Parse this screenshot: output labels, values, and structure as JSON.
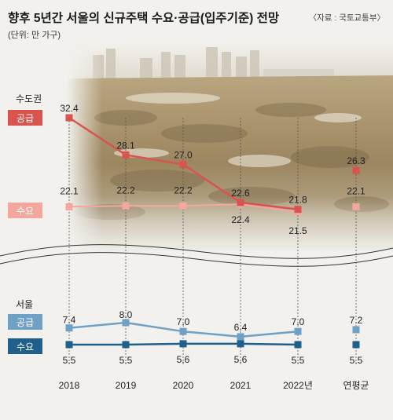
{
  "title": "향후 5년간 서울의 신규주택 수요·공급(입주기준) 전망",
  "unit": "(단위: 만 가구)",
  "source": "〈자료 : 국토교통부〉",
  "colors": {
    "capital_supply": "#d9534f",
    "capital_demand": "#f4a79f",
    "seoul_supply": "#6fa0c6",
    "seoul_demand": "#1f5f8b",
    "text": "#222222",
    "background": "#f2f1ee"
  },
  "chart_data": [
    {
      "type": "line",
      "group": "수도권",
      "categories": [
        "2018",
        "2019",
        "2020",
        "2021",
        "2022년"
      ],
      "series": [
        {
          "name": "공급",
          "values": [
            32.4,
            28.1,
            27.0,
            22.6,
            21.8
          ],
          "labels": [
            "32.4",
            "28.1",
            "27.0",
            "22.6",
            "21.8"
          ],
          "average": 26.3,
          "average_label": "26.3"
        },
        {
          "name": "수요",
          "values": [
            22.1,
            22.2,
            22.2,
            22.4,
            21.5
          ],
          "labels": [
            "22.1",
            "22.2",
            "22.2",
            "22.4",
            "21.5"
          ],
          "average": 22.1,
          "average_label": "22.1"
        }
      ],
      "average_category": "연평균"
    },
    {
      "type": "line",
      "group": "서울",
      "categories": [
        "2018",
        "2019",
        "2020",
        "2021",
        "2022년"
      ],
      "series": [
        {
          "name": "공급",
          "values": [
            7.4,
            8.0,
            7.0,
            6.4,
            7.0
          ],
          "labels": [
            "7.4",
            "8.0",
            "7.0",
            "6.4",
            "7.0"
          ],
          "average": 7.2,
          "average_label": "7.2"
        },
        {
          "name": "수요",
          "values": [
            5.5,
            5.5,
            5.6,
            5.6,
            5.5
          ],
          "labels": [
            "5.5",
            "5.5",
            "5.6",
            "5.6",
            "5.5"
          ],
          "average": 5.5,
          "average_label": "5.5"
        }
      ],
      "average_category": "연평균"
    }
  ]
}
